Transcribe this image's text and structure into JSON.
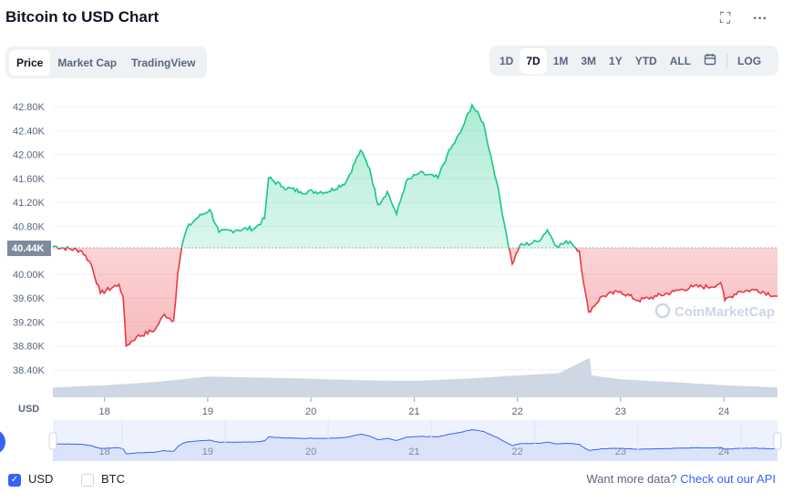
{
  "header": {
    "title": "Bitcoin to USD Chart",
    "fullscreen_icon": "fullscreen-icon",
    "more_icon": "more-icon"
  },
  "tabs": [
    {
      "label": "Price",
      "active": true
    },
    {
      "label": "Market Cap"
    },
    {
      "label": "TradingView"
    }
  ],
  "ranges": [
    {
      "label": "1D"
    },
    {
      "label": "7D",
      "active": true
    },
    {
      "label": "1M"
    },
    {
      "label": "3M"
    },
    {
      "label": "1Y"
    },
    {
      "label": "YTD"
    },
    {
      "label": "ALL"
    }
  ],
  "log_label": "LOG",
  "colors": {
    "up": "#16c784",
    "down": "#ea3943",
    "accent": "#3861fb",
    "volume": "#cfd6e4"
  },
  "chart_data": {
    "type": "line",
    "title": "Bitcoin to USD Chart",
    "ylabel": "USD",
    "ylim": [
      38.2,
      43.0
    ],
    "yticks": [
      "42.80K",
      "42.40K",
      "42.00K",
      "41.60K",
      "41.20K",
      "40.80K",
      "40.00K",
      "39.60K",
      "39.20K",
      "38.80K",
      "38.40K"
    ],
    "ytick_values": [
      42.8,
      42.4,
      42.0,
      41.6,
      41.2,
      40.8,
      40.0,
      39.6,
      39.2,
      38.8,
      38.4
    ],
    "baseline": {
      "label": "40.44K",
      "value": 40.44
    },
    "xlim": [
      17.5,
      24.52
    ],
    "xticks": [
      "18",
      "19",
      "20",
      "21",
      "22",
      "23",
      "24"
    ],
    "xtick_values": [
      18,
      19,
      20,
      21,
      22,
      23,
      24
    ],
    "watermark": "CoinMarketCap",
    "series": [
      {
        "name": "Price (K USD)",
        "points": [
          [
            17.5,
            40.47
          ],
          [
            17.78,
            40.39
          ],
          [
            17.87,
            40.17
          ],
          [
            17.96,
            39.68
          ],
          [
            18.14,
            39.83
          ],
          [
            18.18,
            39.63
          ],
          [
            18.21,
            38.8
          ],
          [
            18.31,
            38.95
          ],
          [
            18.49,
            39.07
          ],
          [
            18.58,
            39.33
          ],
          [
            18.67,
            39.22
          ],
          [
            18.71,
            40.01
          ],
          [
            18.75,
            40.47
          ],
          [
            18.8,
            40.77
          ],
          [
            18.89,
            40.93
          ],
          [
            19.02,
            41.08
          ],
          [
            19.11,
            40.7
          ],
          [
            19.28,
            40.74
          ],
          [
            19.46,
            40.77
          ],
          [
            19.55,
            40.93
          ],
          [
            19.59,
            41.61
          ],
          [
            19.73,
            41.46
          ],
          [
            19.9,
            41.38
          ],
          [
            20.17,
            41.38
          ],
          [
            20.34,
            41.54
          ],
          [
            20.48,
            42.07
          ],
          [
            20.57,
            41.76
          ],
          [
            20.65,
            41.16
          ],
          [
            20.74,
            41.38
          ],
          [
            20.83,
            41.0
          ],
          [
            20.92,
            41.54
          ],
          [
            21.05,
            41.69
          ],
          [
            21.23,
            41.61
          ],
          [
            21.32,
            41.99
          ],
          [
            21.45,
            42.37
          ],
          [
            21.56,
            42.83
          ],
          [
            21.67,
            42.53
          ],
          [
            21.8,
            41.54
          ],
          [
            21.89,
            40.7
          ],
          [
            21.95,
            40.17
          ],
          [
            22.02,
            40.47
          ],
          [
            22.2,
            40.55
          ],
          [
            22.29,
            40.74
          ],
          [
            22.38,
            40.47
          ],
          [
            22.51,
            40.55
          ],
          [
            22.6,
            40.39
          ],
          [
            22.64,
            39.86
          ],
          [
            22.69,
            39.37
          ],
          [
            22.82,
            39.63
          ],
          [
            23.0,
            39.71
          ],
          [
            23.17,
            39.56
          ],
          [
            23.35,
            39.63
          ],
          [
            23.52,
            39.71
          ],
          [
            23.7,
            39.79
          ],
          [
            23.88,
            39.79
          ],
          [
            23.97,
            39.86
          ],
          [
            24.01,
            39.56
          ],
          [
            24.14,
            39.71
          ],
          [
            24.32,
            39.74
          ],
          [
            24.52,
            39.63
          ]
        ]
      }
    ],
    "volume_relative": [
      [
        17.5,
        0.18
      ],
      [
        18.0,
        0.22
      ],
      [
        18.5,
        0.28
      ],
      [
        19.0,
        0.38
      ],
      [
        19.5,
        0.36
      ],
      [
        20.0,
        0.34
      ],
      [
        20.5,
        0.31
      ],
      [
        21.0,
        0.3
      ],
      [
        21.5,
        0.34
      ],
      [
        22.0,
        0.4
      ],
      [
        22.4,
        0.44
      ],
      [
        22.7,
        0.72
      ],
      [
        22.72,
        0.4
      ],
      [
        23.0,
        0.33
      ],
      [
        23.5,
        0.28
      ],
      [
        24.0,
        0.22
      ],
      [
        24.52,
        0.18
      ]
    ]
  },
  "navigator": {
    "labels": [
      "18",
      "19",
      "20",
      "21",
      "22",
      "23",
      "24"
    ]
  },
  "footer": {
    "usd_label": "USD",
    "usd_checked": true,
    "btc_label": "BTC",
    "btc_checked": false,
    "more_data_text": "Want more data?",
    "api_link": "Check out our API"
  }
}
